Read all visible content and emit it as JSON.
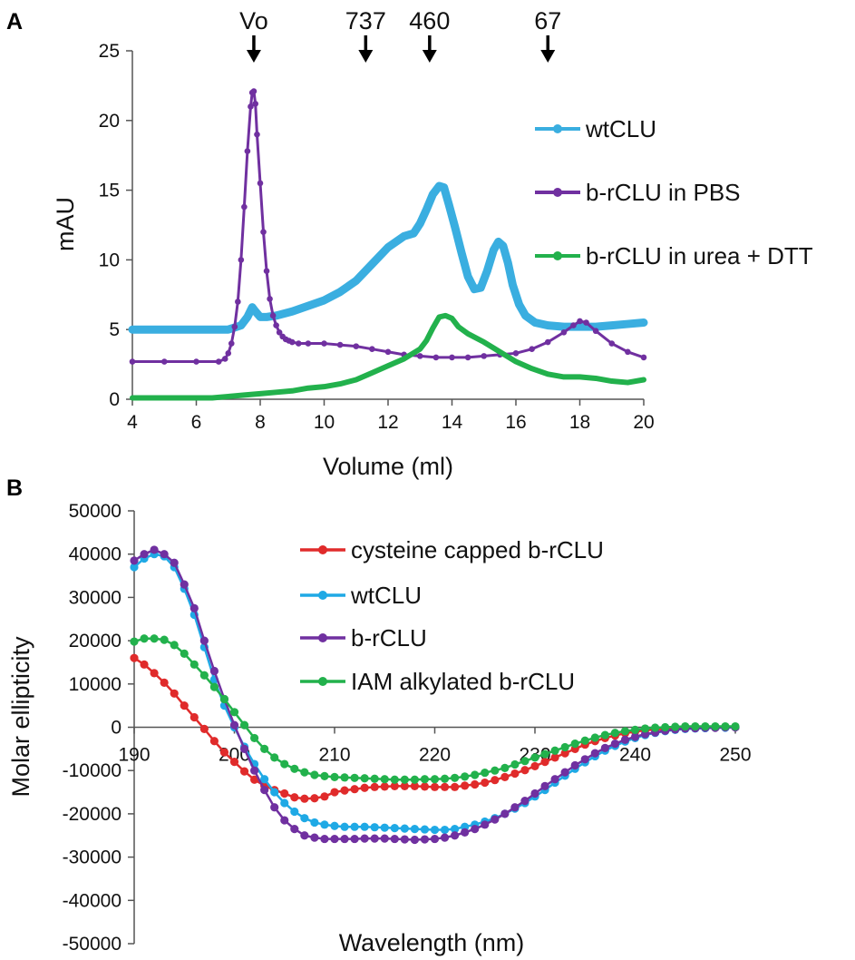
{
  "chart_data": [
    {
      "panel_label": "A",
      "type": "line",
      "title": "",
      "xlabel": "Volume (ml)",
      "ylabel": "mAU",
      "xlim": [
        4,
        20
      ],
      "ylim": [
        0,
        25
      ],
      "x_ticks": [
        "4",
        "6",
        "8",
        "10",
        "12",
        "14",
        "16",
        "18",
        "20"
      ],
      "y_ticks": [
        "0",
        "5",
        "10",
        "15",
        "20",
        "25"
      ],
      "grid": false,
      "legend_position": "right",
      "markers": [
        {
          "label": "Vo",
          "x": 7.8
        },
        {
          "label": "737",
          "x": 11.3
        },
        {
          "label": "460",
          "x": 13.3
        },
        {
          "label": "67",
          "x": 17.0
        }
      ],
      "series": [
        {
          "name": "wtCLU",
          "color": "#3aaee0",
          "x": [
            4,
            5,
            6,
            6.5,
            7,
            7.4,
            7.6,
            7.75,
            7.85,
            8.0,
            8.2,
            8.5,
            9,
            9.5,
            10,
            10.5,
            11,
            11.5,
            12,
            12.5,
            12.8,
            13.0,
            13.2,
            13.4,
            13.6,
            13.75,
            13.9,
            14.1,
            14.3,
            14.5,
            14.7,
            14.9,
            15.1,
            15.3,
            15.45,
            15.6,
            15.75,
            15.9,
            16.1,
            16.3,
            16.6,
            17,
            17.5,
            18,
            18.5,
            19,
            19.5,
            20
          ],
          "y": [
            5.0,
            5.0,
            5.0,
            5.0,
            5.0,
            5.3,
            5.9,
            6.6,
            6.3,
            5.9,
            5.9,
            6.0,
            6.3,
            6.7,
            7.1,
            7.7,
            8.5,
            9.7,
            10.9,
            11.7,
            11.9,
            12.6,
            13.6,
            14.7,
            15.3,
            15.2,
            14.0,
            12.3,
            10.5,
            8.8,
            7.9,
            8.0,
            9.2,
            10.7,
            11.3,
            11.0,
            9.8,
            8.2,
            6.8,
            6.0,
            5.5,
            5.3,
            5.2,
            5.2,
            5.2,
            5.3,
            5.4,
            5.5
          ]
        },
        {
          "name": "b-rCLU in PBS",
          "color": "#7030a0",
          "x": [
            4,
            5,
            6,
            6.7,
            6.9,
            7.0,
            7.1,
            7.2,
            7.3,
            7.4,
            7.5,
            7.6,
            7.7,
            7.75,
            7.8,
            7.85,
            7.9,
            8.0,
            8.1,
            8.2,
            8.3,
            8.4,
            8.5,
            8.6,
            8.7,
            8.8,
            8.9,
            9.0,
            9.2,
            9.5,
            10,
            10.5,
            11,
            11.5,
            12,
            12.5,
            13,
            13.5,
            14,
            14.5,
            15,
            15.5,
            16,
            16.5,
            17,
            17.5,
            17.8,
            18,
            18.2,
            18.5,
            19,
            19.5,
            20
          ],
          "y": [
            2.7,
            2.7,
            2.7,
            2.7,
            2.9,
            3.3,
            4.0,
            5.2,
            7.0,
            10.0,
            13.8,
            17.8,
            21.0,
            22.0,
            22.1,
            21.2,
            19.0,
            15.5,
            12.0,
            9.2,
            7.2,
            6.0,
            5.3,
            4.8,
            4.5,
            4.3,
            4.2,
            4.1,
            4.0,
            4.0,
            4.0,
            3.9,
            3.8,
            3.6,
            3.4,
            3.2,
            3.1,
            3.0,
            3.0,
            3.0,
            3.1,
            3.2,
            3.3,
            3.6,
            4.1,
            4.8,
            5.3,
            5.6,
            5.5,
            4.9,
            4.0,
            3.4,
            3.0
          ]
        },
        {
          "name": "b-rCLU in urea + DTT",
          "color": "#22b14c",
          "x": [
            4,
            5,
            6,
            6.5,
            7,
            7.5,
            8,
            8.5,
            9,
            9.5,
            10,
            10.5,
            11,
            11.5,
            12,
            12.5,
            13,
            13.2,
            13.4,
            13.6,
            13.8,
            14.0,
            14.2,
            14.5,
            15,
            15.5,
            16,
            16.5,
            17,
            17.5,
            18,
            18.5,
            19,
            19.5,
            20
          ],
          "y": [
            0.1,
            0.1,
            0.1,
            0.1,
            0.2,
            0.3,
            0.4,
            0.5,
            0.6,
            0.8,
            0.9,
            1.1,
            1.4,
            1.9,
            2.4,
            2.9,
            3.6,
            4.2,
            5.1,
            5.9,
            6.0,
            5.8,
            5.2,
            4.7,
            4.1,
            3.4,
            2.7,
            2.2,
            1.8,
            1.6,
            1.6,
            1.5,
            1.3,
            1.2,
            1.4
          ]
        }
      ]
    },
    {
      "panel_label": "B",
      "type": "line",
      "title": "",
      "xlabel": "Wavelength (nm)",
      "ylabel": "Molar ellipticity",
      "xlim": [
        190,
        250
      ],
      "ylim": [
        -50000,
        50000
      ],
      "x_ticks": [
        "190",
        "200",
        "210",
        "220",
        "230",
        "240",
        "250"
      ],
      "y_ticks": [
        "-50000",
        "-40000",
        "-30000",
        "-20000",
        "-10000",
        "0",
        "10000",
        "20000",
        "30000",
        "40000",
        "50000"
      ],
      "grid": false,
      "legend_position": "top-right",
      "series": [
        {
          "name": "cysteine capped b-rCLU",
          "color": "#e02b2b",
          "x": [
            190,
            191,
            192,
            193,
            194,
            195,
            196,
            197,
            198,
            199,
            200,
            201,
            202,
            203,
            204,
            205,
            206,
            207,
            208,
            209,
            210,
            211,
            212,
            213,
            214,
            215,
            216,
            217,
            218,
            219,
            220,
            221,
            222,
            223,
            224,
            225,
            226,
            227,
            228,
            229,
            230,
            231,
            232,
            233,
            234,
            235,
            236,
            237,
            238,
            239,
            240,
            241,
            242,
            243,
            244,
            245,
            246,
            247,
            248,
            249,
            250
          ],
          "y": [
            16000,
            14500,
            12500,
            10300,
            7800,
            5000,
            2300,
            -400,
            -3200,
            -5800,
            -8000,
            -10200,
            -12100,
            -13500,
            -14500,
            -15300,
            -16200,
            -16500,
            -16400,
            -16000,
            -15000,
            -14600,
            -14300,
            -14000,
            -13800,
            -13700,
            -13600,
            -13600,
            -13600,
            -13700,
            -13800,
            -13800,
            -13800,
            -13500,
            -13200,
            -12800,
            -12200,
            -11500,
            -10700,
            -9900,
            -9000,
            -8000,
            -7000,
            -6000,
            -5000,
            -4000,
            -3200,
            -2500,
            -1900,
            -1400,
            -1000,
            -700,
            -500,
            -400,
            -300,
            -200,
            -200,
            -100,
            -100,
            0,
            0
          ]
        },
        {
          "name": "wtCLU",
          "color": "#1fa9e5",
          "x": [
            190,
            191,
            192,
            193,
            194,
            195,
            196,
            197,
            198,
            199,
            200,
            201,
            202,
            203,
            204,
            205,
            206,
            207,
            208,
            209,
            210,
            211,
            212,
            213,
            214,
            215,
            216,
            217,
            218,
            219,
            220,
            221,
            222,
            223,
            224,
            225,
            226,
            227,
            228,
            229,
            230,
            231,
            232,
            233,
            234,
            235,
            236,
            237,
            238,
            239,
            240,
            241,
            242,
            243,
            244,
            245,
            246,
            247,
            248,
            249,
            250
          ],
          "y": [
            37000,
            39000,
            40000,
            39500,
            37000,
            32000,
            26000,
            18500,
            11000,
            5000,
            0,
            -4500,
            -8500,
            -12000,
            -15000,
            -17500,
            -19500,
            -21000,
            -22000,
            -22500,
            -22800,
            -23000,
            -23000,
            -23000,
            -23100,
            -23200,
            -23300,
            -23400,
            -23500,
            -23600,
            -23700,
            -23700,
            -23500,
            -23000,
            -22500,
            -21800,
            -21000,
            -20000,
            -18800,
            -17500,
            -16000,
            -14500,
            -12800,
            -11200,
            -9600,
            -8100,
            -6700,
            -5400,
            -4300,
            -3300,
            -2500,
            -1800,
            -1300,
            -900,
            -600,
            -400,
            -300,
            -200,
            -100,
            -100,
            0
          ]
        },
        {
          "name": "b-rCLU",
          "color": "#7030a0",
          "x": [
            190,
            191,
            192,
            193,
            194,
            195,
            196,
            197,
            198,
            199,
            200,
            201,
            202,
            203,
            204,
            205,
            206,
            207,
            208,
            209,
            210,
            211,
            212,
            213,
            214,
            215,
            216,
            217,
            218,
            219,
            220,
            221,
            222,
            223,
            224,
            225,
            226,
            227,
            228,
            229,
            230,
            231,
            232,
            233,
            234,
            235,
            236,
            237,
            238,
            239,
            240,
            241,
            242,
            243,
            244,
            245,
            246,
            247,
            248,
            249,
            250
          ],
          "y": [
            38500,
            40000,
            41000,
            40000,
            38000,
            33000,
            27500,
            20000,
            13000,
            6500,
            500,
            -5000,
            -10000,
            -14500,
            -18500,
            -21500,
            -23500,
            -25000,
            -25500,
            -25800,
            -25800,
            -25800,
            -25800,
            -25700,
            -25700,
            -25700,
            -25800,
            -25900,
            -26000,
            -25900,
            -25800,
            -25500,
            -25000,
            -24300,
            -23500,
            -22500,
            -21300,
            -20000,
            -18500,
            -17000,
            -15300,
            -13600,
            -12000,
            -10400,
            -8800,
            -7400,
            -6000,
            -4800,
            -3800,
            -2900,
            -2200,
            -1600,
            -1200,
            -800,
            -500,
            -300,
            -200,
            -100,
            -100,
            0,
            0
          ]
        },
        {
          "name": "IAM alkylated b-rCLU",
          "color": "#22b14c",
          "x": [
            190,
            191,
            192,
            193,
            194,
            195,
            196,
            197,
            198,
            199,
            200,
            201,
            202,
            203,
            204,
            205,
            206,
            207,
            208,
            209,
            210,
            211,
            212,
            213,
            214,
            215,
            216,
            217,
            218,
            219,
            220,
            221,
            222,
            223,
            224,
            225,
            226,
            227,
            228,
            229,
            230,
            231,
            232,
            233,
            234,
            235,
            236,
            237,
            238,
            239,
            240,
            241,
            242,
            243,
            244,
            245,
            246,
            247,
            248,
            249,
            250
          ],
          "y": [
            19800,
            20500,
            20500,
            20200,
            19000,
            17000,
            14500,
            12000,
            9300,
            6500,
            3500,
            500,
            -2500,
            -5000,
            -7000,
            -8500,
            -9600,
            -10400,
            -11000,
            -11300,
            -11500,
            -11600,
            -11700,
            -11800,
            -11900,
            -12000,
            -12100,
            -12100,
            -12100,
            -12000,
            -12000,
            -11900,
            -11700,
            -11400,
            -11000,
            -10500,
            -10000,
            -9400,
            -8600,
            -7800,
            -7000,
            -6200,
            -5400,
            -4600,
            -3800,
            -3100,
            -2400,
            -1800,
            -1300,
            -900,
            -600,
            -300,
            -100,
            0,
            100,
            200,
            200,
            200,
            200,
            200,
            200
          ]
        }
      ]
    }
  ]
}
